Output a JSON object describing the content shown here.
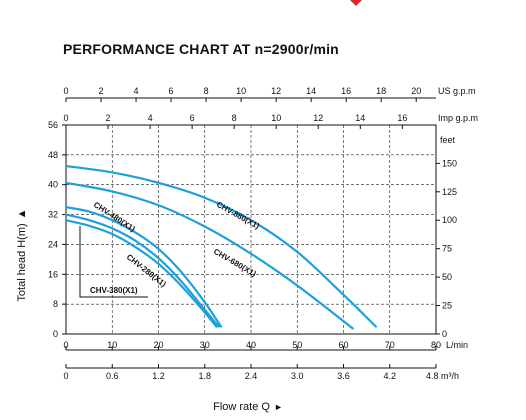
{
  "accent_color": "#1ea0dc",
  "chart_data": {
    "type": "line",
    "title": "PERFORMANCE CHART AT n=2900r/min",
    "xlabel": "Flow rate  Q",
    "ylabel": "Total  head H(m)",
    "xlim": [
      0,
      80
    ],
    "ylim": [
      0,
      56
    ],
    "grid": true,
    "x_ticks": [
      "0",
      "10",
      "20",
      "30",
      "40",
      "50",
      "60",
      "70",
      "80"
    ],
    "x_unit": "L/min",
    "y_ticks": [
      "0",
      "8",
      "16",
      "24",
      "32",
      "40",
      "48",
      "56"
    ],
    "x2_ticks": [
      "0",
      "0.6",
      "1.2",
      "1.8",
      "2.4",
      "3.0",
      "3.6",
      "4.2",
      "4.8"
    ],
    "x2_unit": "m³/h",
    "top1_ticks": [
      "0",
      "2",
      "4",
      "6",
      "8",
      "10",
      "12",
      "14",
      "16",
      "18",
      "20"
    ],
    "top1_unit": "US g.p.m",
    "top2_ticks": [
      "0",
      "2",
      "4",
      "6",
      "8",
      "10",
      "12",
      "14",
      "16"
    ],
    "top2_unit": "Imp g.p.m",
    "right_unit": "feet",
    "right_ticks": [
      "0",
      "25",
      "50",
      "75",
      "100",
      "125",
      "150"
    ],
    "series": [
      {
        "name": "CHV-880(X1)",
        "x": [
          0,
          10,
          20,
          30,
          40,
          50,
          60,
          67
        ],
        "y": [
          45,
          43.3,
          40.5,
          36.5,
          30.5,
          22,
          10.5,
          2
        ]
      },
      {
        "name": "CHV-680(X1)",
        "x": [
          0,
          10,
          20,
          30,
          40,
          50,
          62
        ],
        "y": [
          40.5,
          38.2,
          34.5,
          28.8,
          21.5,
          13,
          1.5
        ]
      },
      {
        "name": "CHV-480(X1)",
        "x": [
          0,
          5,
          10,
          15,
          20,
          25,
          30,
          33.5
        ],
        "y": [
          34,
          32.8,
          30.5,
          27.2,
          22.8,
          16.5,
          8.5,
          2
        ]
      },
      {
        "name": "CHV-280(X1)",
        "x": [
          0,
          5,
          10,
          15,
          20,
          25,
          30,
          33
        ],
        "y": [
          32,
          30.5,
          28.3,
          25,
          20.3,
          14,
          6.5,
          2
        ]
      },
      {
        "name": "CHV-380(X1)",
        "x": [
          0,
          5,
          10,
          15,
          20,
          25,
          30,
          32.5
        ],
        "y": [
          30.5,
          29,
          26.8,
          23.3,
          18.8,
          12.8,
          5.8,
          2
        ]
      }
    ]
  }
}
